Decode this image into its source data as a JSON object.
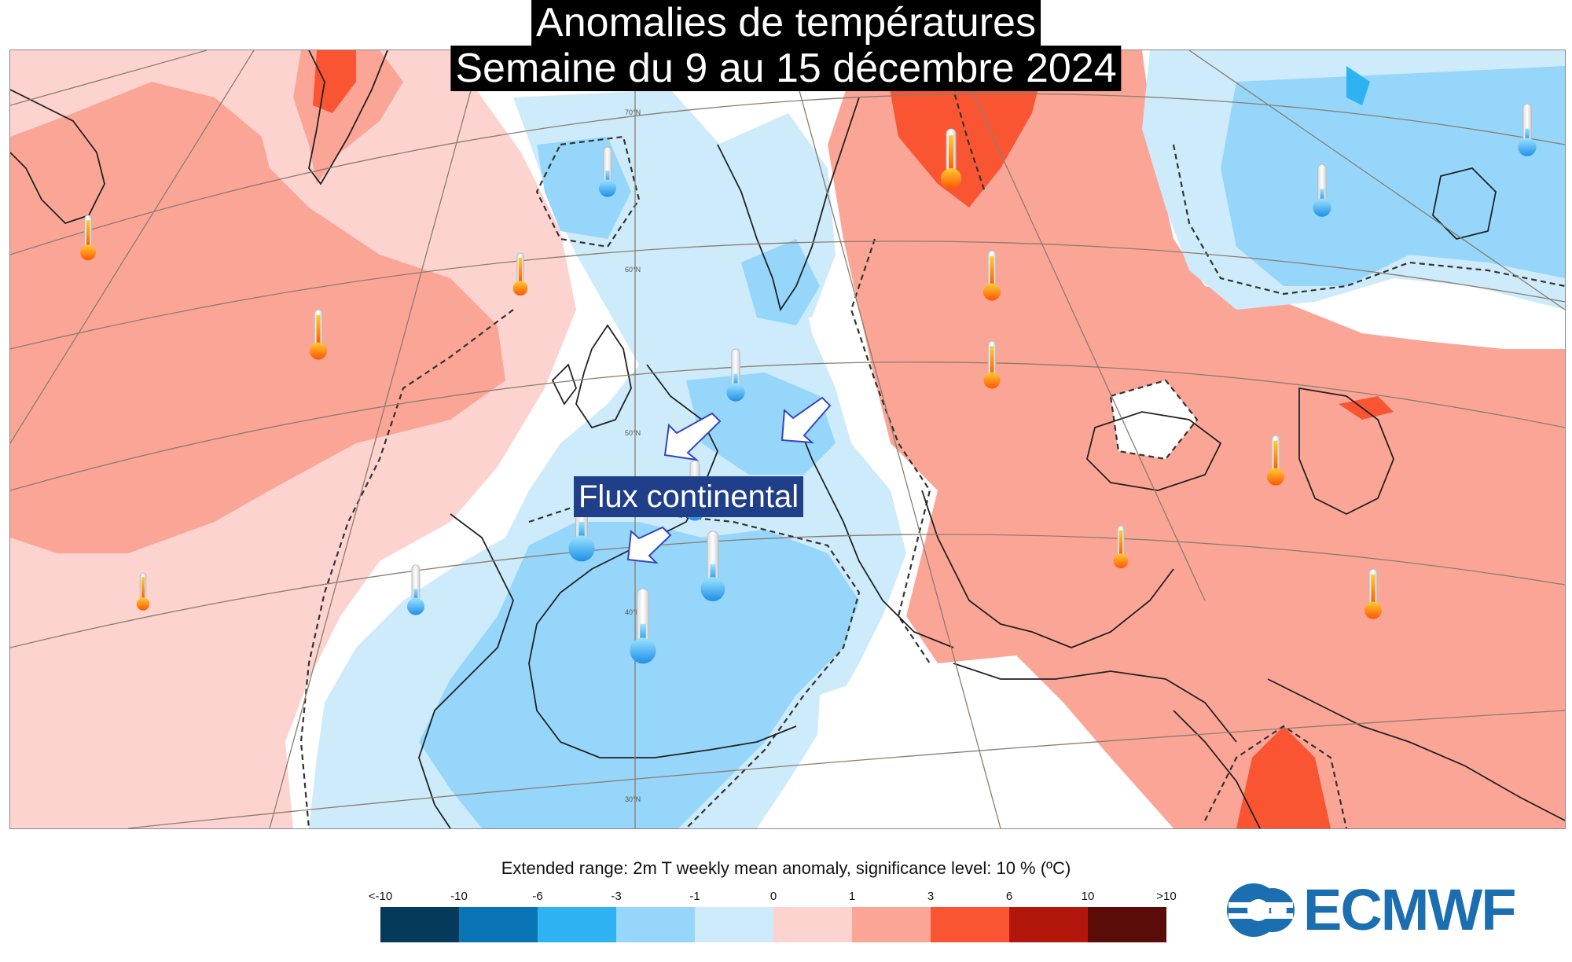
{
  "title": "Anomalies de températures",
  "subtitle": "Semaine du 9 au 15 décembre 2024",
  "annotation": "Flux continental",
  "caption": "Extended range: 2m T weekly mean anomaly, significance level: 10 % (ºC)",
  "legend": {
    "ticks": [
      "<-10",
      "-10",
      "-6",
      "-3",
      "-1",
      "0",
      "1",
      "3",
      "6",
      "10",
      ">10"
    ],
    "colors": [
      "#053a5a",
      "#0a75b5",
      "#2fb2f2",
      "#96d6fa",
      "#cdebfb",
      "#fdd3d0",
      "#fba597",
      "#fa5533",
      "#b3170c",
      "#5a0c08"
    ]
  },
  "latitude_labels": [
    "70°N",
    "60°N",
    "50°N",
    "40°N",
    "30°N"
  ],
  "logo": {
    "text": "ECMWF",
    "color": "#1b6fb0"
  },
  "thermometers": [
    {
      "type": "warm"
    },
    {
      "type": "warm"
    },
    {
      "type": "warm"
    },
    {
      "type": "warm"
    },
    {
      "type": "warm"
    },
    {
      "type": "warm"
    },
    {
      "type": "warm"
    },
    {
      "type": "warm"
    },
    {
      "type": "warm"
    },
    {
      "type": "warm"
    },
    {
      "type": "cold"
    },
    {
      "type": "cold"
    },
    {
      "type": "cold"
    },
    {
      "type": "cold"
    },
    {
      "type": "cold"
    },
    {
      "type": "cold"
    },
    {
      "type": "cold"
    },
    {
      "type": "cold"
    },
    {
      "type": "cold"
    },
    {
      "type": "cold"
    }
  ]
}
